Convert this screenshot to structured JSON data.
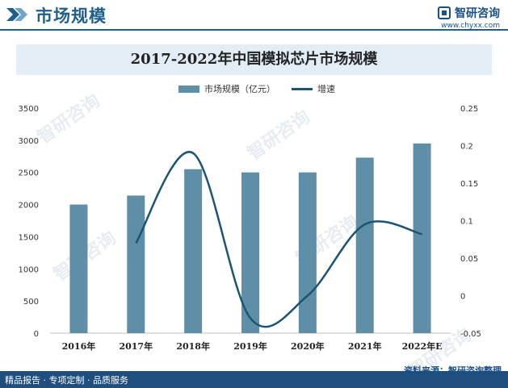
{
  "header": {
    "title": "市场规模",
    "brand_name": "智研咨询",
    "url": "www.chyxx.com"
  },
  "chart_title": "2017-2022年中国模拟芯片市场规模",
  "legend": {
    "bar_label": "市场规模（亿元）",
    "line_label": "增速"
  },
  "footer": {
    "tagline": "精品报告 · 专项定制 · 品质服务",
    "source": "资料来源：智研咨询整理"
  },
  "watermark": "智研咨询",
  "colors": {
    "bar": "#5f8fa6",
    "line": "#1b5573",
    "header": "#1f5f8b",
    "footer": "#1f4f7f"
  },
  "chart_data": {
    "type": "bar",
    "categories": [
      "2016年",
      "2017年",
      "2018年",
      "2019年",
      "2020年",
      "2021年",
      "2022年E"
    ],
    "series": [
      {
        "name": "市场规模（亿元）",
        "type": "bar",
        "axis": "left",
        "values": [
          2000,
          2140,
          2550,
          2500,
          2500,
          2730,
          2950
        ]
      },
      {
        "name": "增速",
        "type": "line",
        "axis": "right",
        "values": [
          null,
          0.07,
          0.19,
          -0.03,
          0.0,
          0.095,
          0.082
        ]
      }
    ],
    "y_left": {
      "min": 0,
      "max": 3500,
      "ticks": [
        0,
        500,
        1000,
        1500,
        2000,
        2500,
        3000,
        3500
      ]
    },
    "y_right": {
      "min": -0.05,
      "max": 0.25,
      "ticks": [
        "-0.05",
        "0",
        "0.05",
        "0.1",
        "0.15",
        "0.2",
        "0.25"
      ]
    },
    "grid": false,
    "legend_position": "top-center"
  }
}
